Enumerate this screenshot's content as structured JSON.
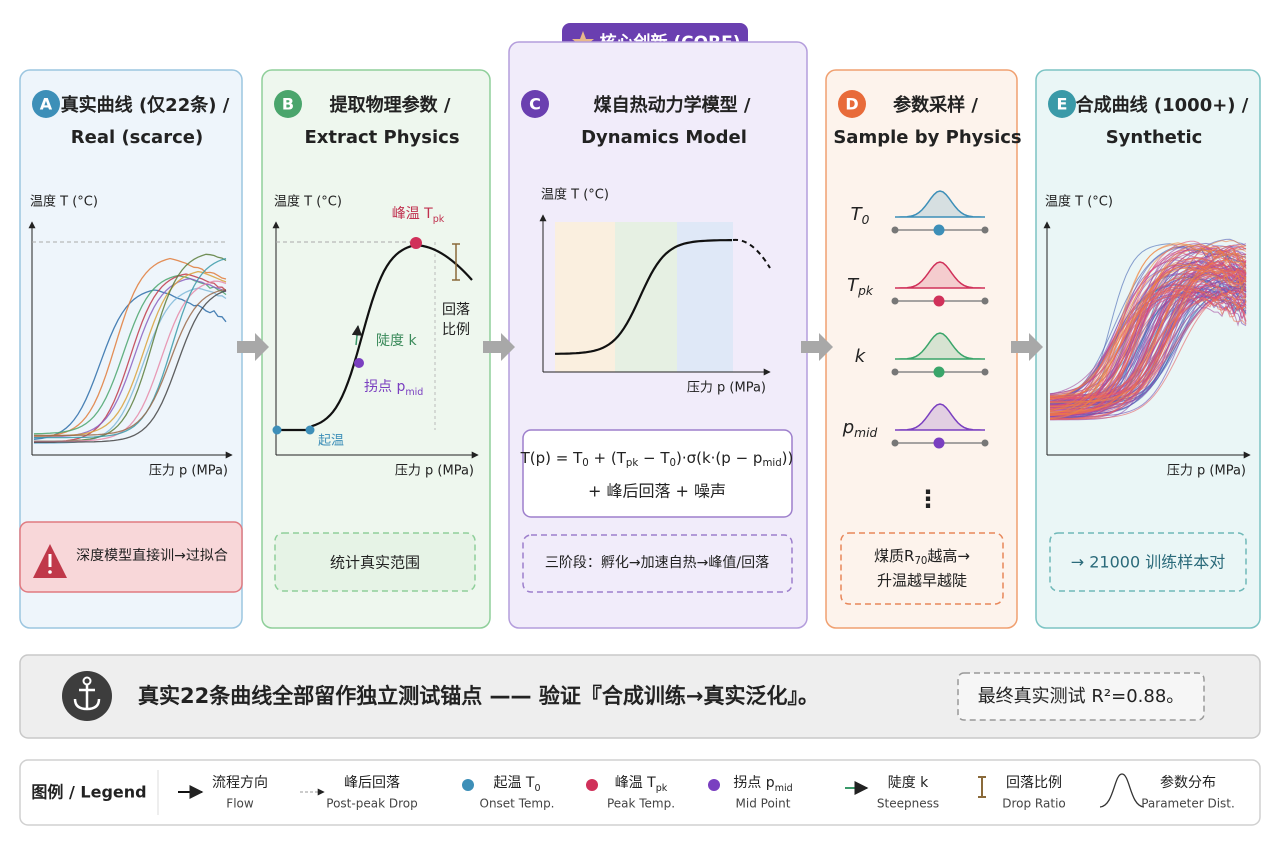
{
  "badge": "核心创新 (CORE)",
  "panels": [
    {
      "letter": "A",
      "title": "真实曲线 (仅22条) /",
      "subtitle": "Real (scarce)",
      "y_axis": "温度 T (°C)",
      "x_axis": "压力 p (MPa)",
      "note": "深度模型直接训→过拟合"
    },
    {
      "letter": "B",
      "title": "提取物理参数 /",
      "subtitle": "Extract Physics",
      "y_axis": "温度 T (°C)",
      "x_axis": "压力 p (MPa)",
      "note": "统计真实范围",
      "labels": {
        "peak": [
          "峰温 T",
          "pk"
        ],
        "drop": "回落",
        "drop2": "比例",
        "slope": "陡度 k",
        "mid": [
          "拐点 p",
          "mid"
        ],
        "onset": "起温"
      }
    },
    {
      "letter": "C",
      "title": "煤自热动力学模型 /",
      "subtitle": "Dynamics Model",
      "y_axis": "温度 T (°C)",
      "x_axis": "压力 p (MPa)",
      "formula": [
        "T(p) = T",
        "0",
        " + (T",
        "pk",
        " − T",
        "0",
        ")·σ(k·(p − p",
        "mid",
        "))"
      ],
      "formula2": "+ 峰后回落 + 噪声",
      "note": "三阶段：孵化→加速自热→峰值/回落"
    },
    {
      "letter": "D",
      "title": "参数采样 /",
      "subtitle": "Sample by Physics",
      "params": [
        [
          "T",
          "0"
        ],
        [
          "T",
          "pk"
        ],
        "k",
        [
          "p",
          "mid"
        ]
      ],
      "more": "⋮",
      "note": [
        "煤质R",
        "70",
        "越高→"
      ],
      "note2": "升温越早越陡"
    },
    {
      "letter": "E",
      "title": "合成曲线 (1000+) /",
      "subtitle": "Synthetic",
      "y_axis": "温度 T (°C)",
      "x_axis": "压力 p (MPa)",
      "note": "→ 21000 训练样本对"
    }
  ],
  "banner": {
    "text": "真实22条曲线全部留作独立测试锚点 —— 验证『合成训练→真实泛化』。",
    "result": "最终真实测试 R²=0.88。"
  },
  "legend": {
    "title": "图例 / Legend",
    "items": [
      {
        "zh": "流程方向",
        "en": "Flow"
      },
      {
        "zh": "峰后回落",
        "en": "Post-peak Drop"
      },
      {
        "zh": [
          "起温 T",
          "0"
        ],
        "en": "Onset Temp."
      },
      {
        "zh": [
          "峰温 T",
          "pk"
        ],
        "en": "Peak Temp."
      },
      {
        "zh": [
          "拐点 p",
          "mid"
        ],
        "en": "Mid Point"
      },
      {
        "zh": "陡度 k",
        "en": "Steepness"
      },
      {
        "zh": "回落比例",
        "en": "Drop Ratio"
      },
      {
        "zh": "参数分布",
        "en": "Parameter Dist."
      }
    ]
  }
}
